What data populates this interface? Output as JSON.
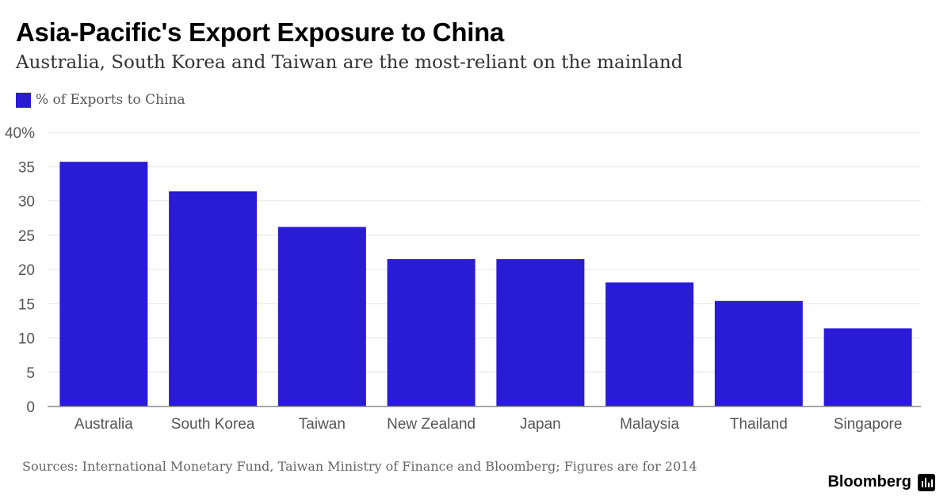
{
  "header": {
    "title": "Asia-Pacific's Export Exposure to China",
    "subtitle": "Australia, South Korea and Taiwan are the most-reliant on the mainland"
  },
  "legend": {
    "label": "% of Exports to China",
    "color": "#2a1bd6"
  },
  "footer": {
    "source": "Sources: International Monetary Fund, Taiwan Ministry of Finance and Bloomberg; Figures are for 2014",
    "brand": "Bloomberg"
  },
  "chart_data": {
    "type": "bar",
    "title": "Asia-Pacific's Export Exposure to China",
    "subtitle": "Australia, South Korea and Taiwan are the most-reliant on the mainland",
    "xlabel": "",
    "ylabel": "",
    "categories": [
      "Australia",
      "South Korea",
      "Taiwan",
      "New Zealand",
      "Japan",
      "Malaysia",
      "Thailand",
      "Singapore"
    ],
    "series": [
      {
        "name": "% of Exports to China",
        "values": [
          35.7,
          31.4,
          26.2,
          21.5,
          21.5,
          18.1,
          15.4,
          11.4
        ],
        "color": "#2a1bd6"
      }
    ],
    "ylim": [
      0,
      40
    ],
    "yticks": [
      0,
      5,
      10,
      15,
      20,
      25,
      30,
      35,
      40
    ],
    "ytick_labels": [
      "0",
      "5",
      "10",
      "15",
      "20",
      "25",
      "30",
      "35",
      "40%"
    ],
    "grid": true,
    "legend_position": "top-left",
    "colors": {
      "bar": "#2a1bd6",
      "grid": "#e3e3e3",
      "axis": "#888888",
      "tick_text": "#555555"
    }
  }
}
